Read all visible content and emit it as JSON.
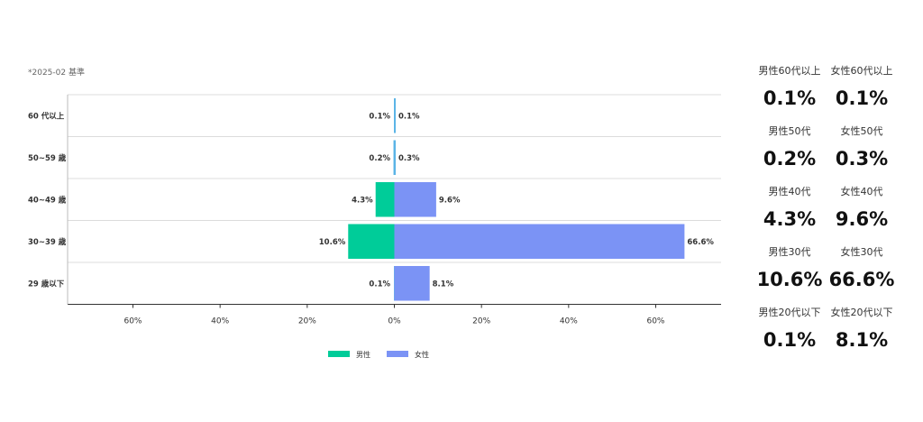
{
  "note": "*2025-02 基準",
  "chart_data": {
    "type": "bar",
    "orientation": "horizontal",
    "categories": [
      "60 代以上",
      "50~59 歳",
      "40~49 歳",
      "30~39 歳",
      "29 歳以下"
    ],
    "series": [
      {
        "name": "男性",
        "values": [
          0.1,
          0.2,
          4.3,
          10.6,
          0.1
        ],
        "labels": [
          "0.1%",
          "0.2%",
          "4.3%",
          "10.6%",
          "0.1%"
        ],
        "color": "#00cc99",
        "direction": "left"
      },
      {
        "name": "女性",
        "values": [
          0.1,
          0.3,
          9.6,
          66.6,
          8.1
        ],
        "labels": [
          "0.1%",
          "0.3%",
          "9.6%",
          "66.6%",
          "8.1%"
        ],
        "color": "#7b93f5",
        "direction": "right"
      }
    ],
    "small_bar_color": "#5ab4e6",
    "x_ticks": [
      "60%",
      "40%",
      "20%",
      "0%",
      "20%",
      "40%",
      "60%"
    ],
    "xlim": [
      -75,
      75
    ],
    "grid": true,
    "legend_position": "bottom"
  },
  "summary": [
    [
      {
        "label": "男性60代以上",
        "value": "0.1%"
      },
      {
        "label": "女性60代以上",
        "value": "0.1%"
      }
    ],
    [
      {
        "label": "男性50代",
        "value": "0.2%"
      },
      {
        "label": "女性50代",
        "value": "0.3%"
      }
    ],
    [
      {
        "label": "男性40代",
        "value": "4.3%"
      },
      {
        "label": "女性40代",
        "value": "9.6%"
      }
    ],
    [
      {
        "label": "男性30代",
        "value": "10.6%"
      },
      {
        "label": "女性30代",
        "value": "66.6%"
      }
    ],
    [
      {
        "label": "男性20代以下",
        "value": "0.1%"
      },
      {
        "label": "女性20代以下",
        "value": "8.1%"
      }
    ]
  ]
}
